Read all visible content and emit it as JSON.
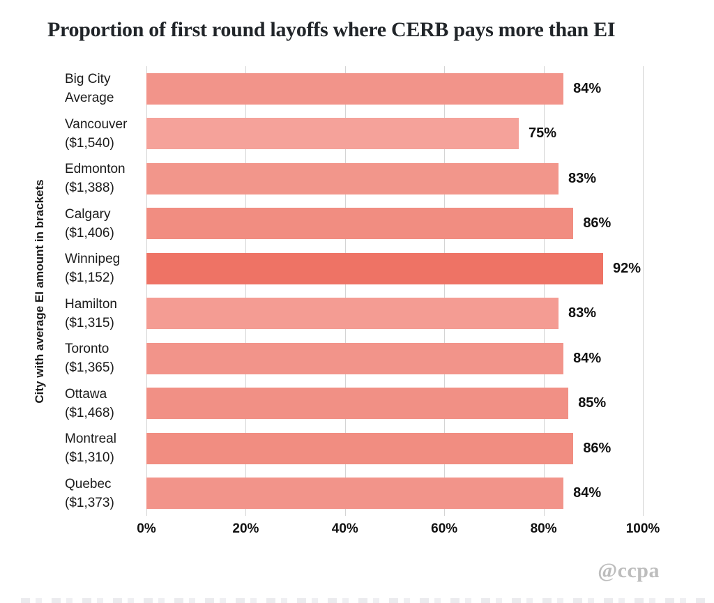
{
  "title": "Proportion of first round layoffs where CERB pays more than EI",
  "watermark": "@ccpa",
  "colors": {
    "bar_default": "#f2948a",
    "bar_highlight": "#ee7365",
    "grid": "#d4d4d4",
    "title_text": "#212529",
    "label_text": "#1a1a1a",
    "watermark_text": "#bdbdbd"
  },
  "chart_data": {
    "type": "bar",
    "orientation": "horizontal",
    "title": "Proportion of first round layoffs where CERB pays more than EI",
    "xlabel": "",
    "ylabel": "City with average EI amount in brackets",
    "xlim": [
      0,
      100
    ],
    "grid": true,
    "x_ticks": [
      {
        "value": 0,
        "label": "0%"
      },
      {
        "value": 20,
        "label": "20%"
      },
      {
        "value": 40,
        "label": "40%"
      },
      {
        "value": 60,
        "label": "60%"
      },
      {
        "value": 80,
        "label": "80%"
      },
      {
        "value": 100,
        "label": "100%"
      }
    ],
    "bars": [
      {
        "category": "Big City Average",
        "lines": [
          "Big City",
          "Average"
        ],
        "value": 84,
        "label": "84%",
        "color": "#f2948a"
      },
      {
        "category": "Vancouver ($1,540)",
        "lines": [
          "Vancouver",
          "($1,540)"
        ],
        "value": 75,
        "label": "75%",
        "color": "#f5a29a"
      },
      {
        "category": "Edmonton ($1,388)",
        "lines": [
          "Edmonton",
          "($1,388)"
        ],
        "value": 83,
        "label": "83%",
        "color": "#f2968b"
      },
      {
        "category": "Calgary ($1,406)",
        "lines": [
          "Calgary",
          "($1,406)"
        ],
        "value": 86,
        "label": "86%",
        "color": "#f18d81"
      },
      {
        "category": "Winnipeg ($1,152)",
        "lines": [
          "Winnipeg",
          "($1,152)"
        ],
        "value": 92,
        "label": "92%",
        "color": "#ee7365"
      },
      {
        "category": "Hamilton ($1,315)",
        "lines": [
          "Hamilton",
          "($1,315)"
        ],
        "value": 83,
        "label": "83%",
        "color": "#f49c93"
      },
      {
        "category": "Toronto ($1,365)",
        "lines": [
          "Toronto",
          "($1,365)"
        ],
        "value": 84,
        "label": "84%",
        "color": "#f2948a"
      },
      {
        "category": "Ottawa ($1,468)",
        "lines": [
          "Ottawa",
          "($1,468)"
        ],
        "value": 85,
        "label": "85%",
        "color": "#f19085"
      },
      {
        "category": "Montreal ($1,310)",
        "lines": [
          "Montreal",
          "($1,310)"
        ],
        "value": 86,
        "label": "86%",
        "color": "#f18d81"
      },
      {
        "category": "Quebec ($1,373)",
        "lines": [
          "Quebec",
          "($1,373)"
        ],
        "value": 84,
        "label": "84%",
        "color": "#f2948a"
      }
    ],
    "highlight_index": 4,
    "legend": null
  }
}
